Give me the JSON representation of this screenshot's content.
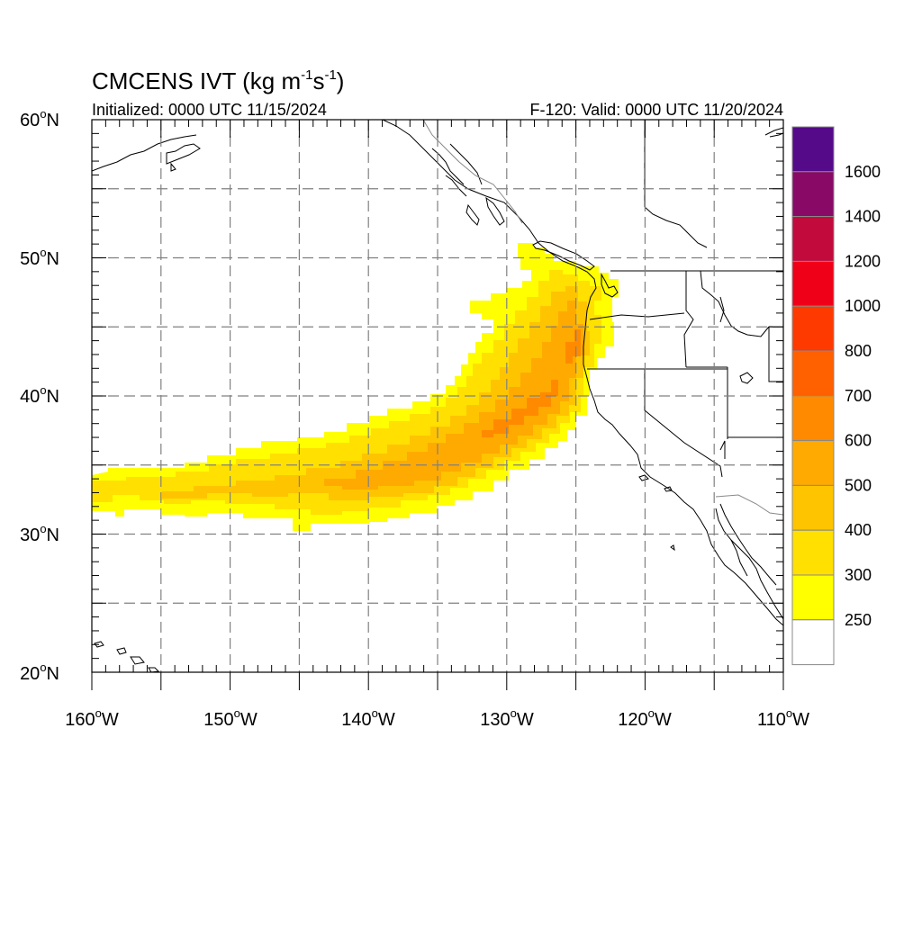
{
  "title": {
    "main": "CMCENS IVT (kg m",
    "exp1": "-1",
    "mid": "s",
    "exp2": "-1",
    "close": ")"
  },
  "subtitle_left": "Initialized: 0000 UTC 11/15/2024",
  "subtitle_right": "F-120: Valid: 0000 UTC 11/20/2024",
  "lat_labels": [
    {
      "num": "60",
      "deg": "o",
      "hemi": "N"
    },
    {
      "num": "50",
      "deg": "o",
      "hemi": "N"
    },
    {
      "num": "40",
      "deg": "o",
      "hemi": "N"
    },
    {
      "num": "30",
      "deg": "o",
      "hemi": "N"
    },
    {
      "num": "20",
      "deg": "o",
      "hemi": "N"
    }
  ],
  "lon_labels": [
    {
      "num": "160",
      "deg": "o",
      "hemi": "W"
    },
    {
      "num": "150",
      "deg": "o",
      "hemi": "W"
    },
    {
      "num": "140",
      "deg": "o",
      "hemi": "W"
    },
    {
      "num": "130",
      "deg": "o",
      "hemi": "W"
    },
    {
      "num": "120",
      "deg": "o",
      "hemi": "W"
    },
    {
      "num": "110",
      "deg": "o",
      "hemi": "W"
    }
  ],
  "colorbar": {
    "labels": [
      "1600",
      "1400",
      "1200",
      "1000",
      "800",
      "700",
      "600",
      "500",
      "400",
      "300",
      "250"
    ],
    "colors_top_to_bottom": [
      "#550a8a",
      "#880a66",
      "#c20a3c",
      "#f00018",
      "#ff3a00",
      "#ff6000",
      "#ff8a00",
      "#ffaa00",
      "#ffc400",
      "#ffe000",
      "#ffff00",
      "#ffffff"
    ]
  },
  "chart_data": {
    "type": "heatmap",
    "variable": "IVT",
    "units": "kg m-1 s-1",
    "lat_range": [
      20,
      60
    ],
    "lon_range": [
      -160,
      -110
    ],
    "levels": [
      250,
      300,
      400,
      500,
      600,
      700,
      800,
      1000,
      1200,
      1400,
      1600
    ],
    "feature": "atmospheric river",
    "axis_spine": [
      [
        -160,
        33
      ],
      [
        -150,
        33
      ],
      [
        -145,
        33.5
      ],
      [
        -140,
        34.5
      ],
      [
        -135,
        35.5
      ],
      [
        -132,
        36.5
      ],
      [
        -129,
        38
      ],
      [
        -127,
        39.5
      ],
      [
        -125.5,
        41.5
      ],
      [
        -124.8,
        44
      ],
      [
        -124.5,
        46.5
      ],
      [
        -124.5,
        49
      ]
    ],
    "max_band": 600,
    "max_location": [
      -128,
      38.5
    ]
  }
}
